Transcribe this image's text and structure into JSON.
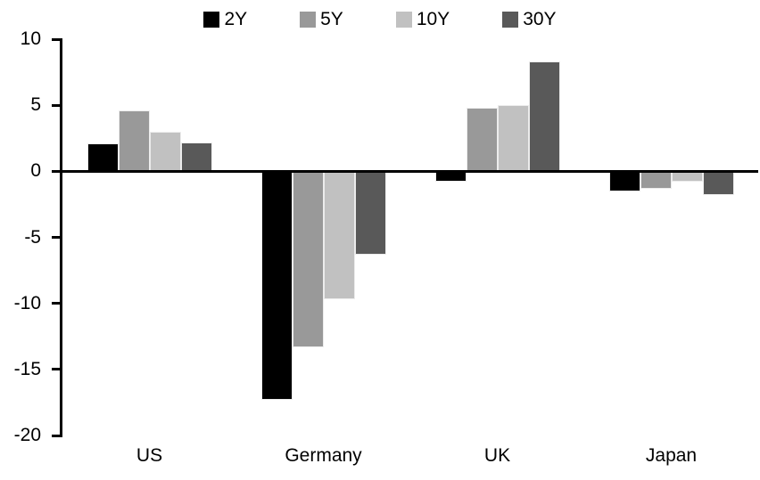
{
  "chart_data": {
    "type": "bar",
    "title": "",
    "xlabel": "",
    "ylabel": "",
    "categories": [
      "US",
      "Germany",
      "UK",
      "Japan"
    ],
    "series": [
      {
        "name": "2Y",
        "color": "#000000",
        "values": [
          2.1,
          -17.3,
          -0.8,
          -1.5
        ]
      },
      {
        "name": "5Y",
        "color": "#999999",
        "values": [
          4.6,
          -13.3,
          4.8,
          -1.3
        ]
      },
      {
        "name": "10Y",
        "color": "#c1c1c1",
        "values": [
          3.0,
          -9.7,
          5.0,
          -0.8
        ]
      },
      {
        "name": "30Y",
        "color": "#595959",
        "values": [
          2.2,
          -6.3,
          8.3,
          -1.8
        ]
      }
    ],
    "ylim": [
      -20,
      10
    ],
    "yticks": [
      10,
      5,
      0,
      -5,
      -10,
      -15,
      -20
    ],
    "ytick_labels": [
      "10",
      "5",
      "0",
      "-5",
      "-10",
      "-15",
      "-20"
    ],
    "legend_position": "top",
    "grid": false,
    "axis_color": "#000000",
    "background_color": "#ffffff"
  }
}
